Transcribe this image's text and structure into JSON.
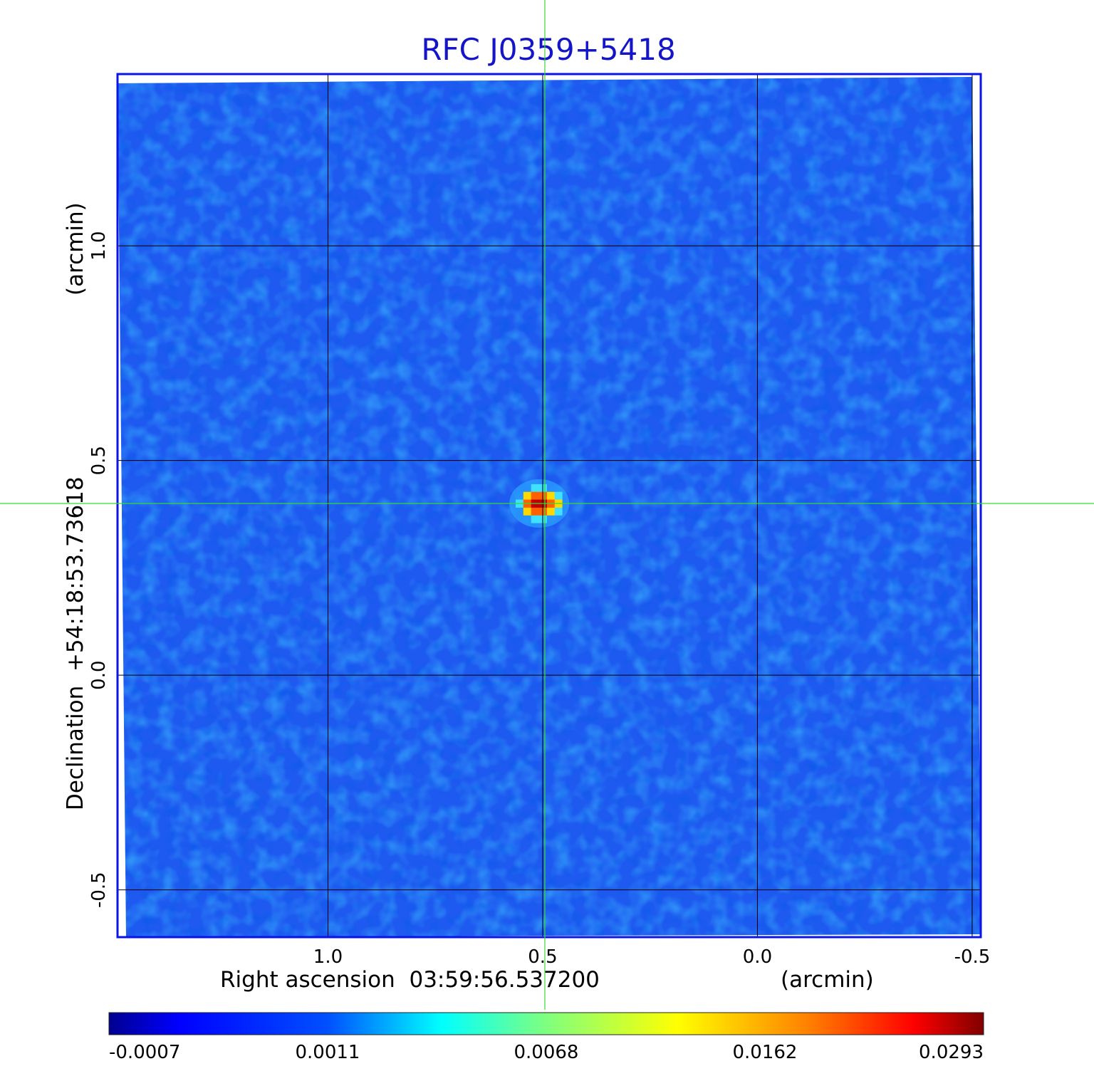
{
  "chart_data": {
    "type": "heatmap",
    "title": "RFC J0359+5418",
    "xlabel": "Right ascension  03:59:56.537200",
    "xlabel_unit": "(arcmin)",
    "ylabel": "Declination  +54:18:53.73618",
    "ylabel_unit": "(arcmin)",
    "x_ticks": [
      "1.0",
      "0.5",
      "0.0",
      "-0.5"
    ],
    "x_tick_values": [
      1.0,
      0.5,
      0.0,
      -0.5
    ],
    "y_ticks": [
      "1.0",
      "0.5",
      "0.0",
      "-0.5"
    ],
    "y_tick_values": [
      1.0,
      0.5,
      0.0,
      -0.5
    ],
    "xlim": [
      1.49,
      -0.52
    ],
    "ylim": [
      -0.61,
      1.4
    ],
    "x_reversed": true,
    "grid": true,
    "colormap": "jet",
    "colorbar": {
      "position": "bottom",
      "ticks": [
        "-0.0007",
        "0.0011",
        "0.0068",
        "0.0162",
        "0.0293"
      ],
      "values": [
        -0.0007,
        0.0011,
        0.0068,
        0.0162,
        0.0293
      ]
    },
    "source": {
      "x": 0.5,
      "y": 0.4,
      "peak": 0.0293,
      "pixels": [
        {
          "x": 0.5,
          "y": 0.4,
          "value": 0.0293
        },
        {
          "x": 0.518,
          "y": 0.4,
          "value": 0.0293
        },
        {
          "x": 0.482,
          "y": 0.4,
          "value": 0.0162
        },
        {
          "x": 0.536,
          "y": 0.4,
          "value": 0.0162
        },
        {
          "x": 0.464,
          "y": 0.4,
          "value": 0.0068
        },
        {
          "x": 0.5,
          "y": 0.418,
          "value": 0.0162
        },
        {
          "x": 0.518,
          "y": 0.418,
          "value": 0.0162
        },
        {
          "x": 0.482,
          "y": 0.418,
          "value": 0.0068
        },
        {
          "x": 0.536,
          "y": 0.418,
          "value": 0.0068
        },
        {
          "x": 0.5,
          "y": 0.382,
          "value": 0.0162
        },
        {
          "x": 0.518,
          "y": 0.382,
          "value": 0.0162
        },
        {
          "x": 0.482,
          "y": 0.382,
          "value": 0.0068
        },
        {
          "x": 0.536,
          "y": 0.382,
          "value": 0.0068
        },
        {
          "x": 0.5,
          "y": 0.436,
          "value": 0.0011
        },
        {
          "x": 0.518,
          "y": 0.436,
          "value": 0.0011
        },
        {
          "x": 0.5,
          "y": 0.364,
          "value": 0.0011
        },
        {
          "x": 0.518,
          "y": 0.364,
          "value": 0.0011
        },
        {
          "x": 0.464,
          "y": 0.382,
          "value": 0.0011
        },
        {
          "x": 0.464,
          "y": 0.418,
          "value": 0.0011
        },
        {
          "x": 0.554,
          "y": 0.4,
          "value": 0.0011
        }
      ]
    },
    "crosshair": {
      "x": 0.495,
      "y": 0.4,
      "color": "#33dd33"
    },
    "colors": {
      "frame": "#0a14e6",
      "title": "#1414c8",
      "background": "#1e5af0",
      "grid": "#000000"
    }
  }
}
